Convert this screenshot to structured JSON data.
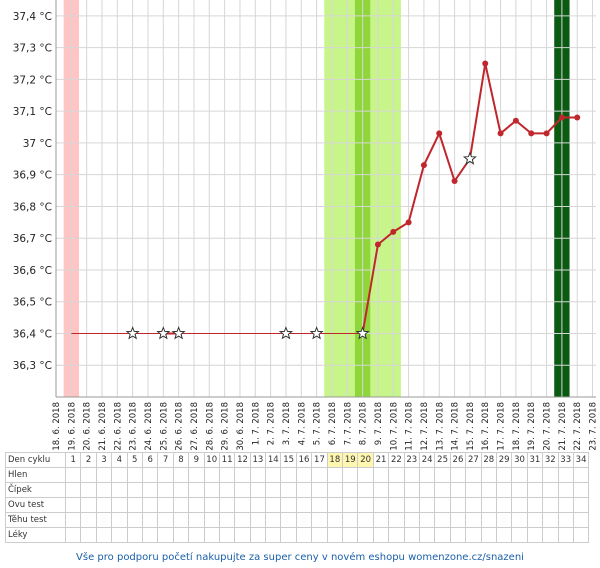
{
  "chart_data": {
    "type": "line",
    "x": [
      "18. 6. 2018",
      "19. 6. 2018",
      "20. 6. 2018",
      "21. 6. 2018",
      "22. 6. 2018",
      "23. 6. 2018",
      "24. 6. 2018",
      "25. 6. 2018",
      "26. 6. 2018",
      "27. 6. 2018",
      "28. 6. 2018",
      "29. 6. 2018",
      "30. 6. 2018",
      "1. 7. 2018",
      "2. 7. 2018",
      "3. 7. 2018",
      "4. 7. 2018",
      "5. 7. 2018",
      "6. 7. 2018",
      "7. 7. 2018",
      "8. 7. 2018",
      "9. 7. 2018",
      "10. 7. 2018",
      "11. 7. 2018",
      "12. 7. 2018",
      "13. 7. 2018",
      "14. 7. 2018",
      "15. 7. 2018",
      "16. 7. 2018",
      "17. 7. 2018",
      "18. 7. 2018",
      "19. 7. 2018",
      "20. 7. 2018",
      "21. 7. 2018",
      "22. 7. 2018",
      "23. 7. 2018"
    ],
    "series": [
      {
        "color": "#c0272d",
        "values": [
          null,
          null,
          null,
          null,
          null,
          36.4,
          null,
          36.4,
          36.4,
          null,
          null,
          null,
          null,
          null,
          null,
          36.4,
          null,
          36.4,
          null,
          null,
          36.4,
          36.68,
          36.72,
          36.75,
          36.93,
          37.03,
          36.88,
          36.95,
          37.25,
          37.03,
          37.07,
          37.03,
          37.03,
          37.08,
          37.08,
          null
        ],
        "star_points": [
          5,
          7,
          8,
          15,
          17,
          20,
          27
        ]
      }
    ],
    "coverline": {
      "value": 36.4,
      "from": 1,
      "to": 20,
      "color": "#c0272d"
    },
    "bands": [
      {
        "from": 1,
        "to": 1,
        "color": "#ffc4c4"
      },
      {
        "from": 18,
        "to": 22,
        "color": "#c8f58a"
      },
      {
        "from": 20,
        "to": 20,
        "color": "#8fd63a"
      },
      {
        "from": 33,
        "to": 33,
        "color": "#0b5a12"
      }
    ],
    "ylim": [
      36.2,
      37.45
    ],
    "yticks": [
      {
        "value": 36.3,
        "label": "36,3 °C"
      },
      {
        "value": 36.4,
        "label": "36,4 °C"
      },
      {
        "value": 36.5,
        "label": "36,5 °C"
      },
      {
        "value": 36.6,
        "label": "36,6 °C"
      },
      {
        "value": 36.7,
        "label": "36,7 °C"
      },
      {
        "value": 36.8,
        "label": "36,8 °C"
      },
      {
        "value": 36.9,
        "label": "36,9 °C"
      },
      {
        "value": 37,
        "label": "37 °C"
      },
      {
        "value": 37.1,
        "label": "37,1 °C"
      },
      {
        "value": 37.2,
        "label": "37,2 °C"
      },
      {
        "value": 37.3,
        "label": "37,3 °C"
      },
      {
        "value": 37.4,
        "label": "37,4 °C"
      }
    ],
    "grid": true
  },
  "table": {
    "row_labels": [
      "Den cyklu",
      "Hlen",
      "Čípek",
      "Ovu test",
      "Těhu test",
      "Léky"
    ],
    "cycle_days": [
      1,
      2,
      3,
      4,
      5,
      6,
      7,
      8,
      9,
      10,
      11,
      12,
      13,
      14,
      15,
      16,
      17,
      18,
      19,
      20,
      21,
      22,
      23,
      24,
      25,
      26,
      27,
      28,
      29,
      30,
      31,
      32,
      33,
      34
    ],
    "highlight_days": [
      18,
      19,
      20
    ]
  },
  "footer": "Vše pro podporu početí nakupujte za super ceny v novém eshopu womenzone.cz/snazeni"
}
